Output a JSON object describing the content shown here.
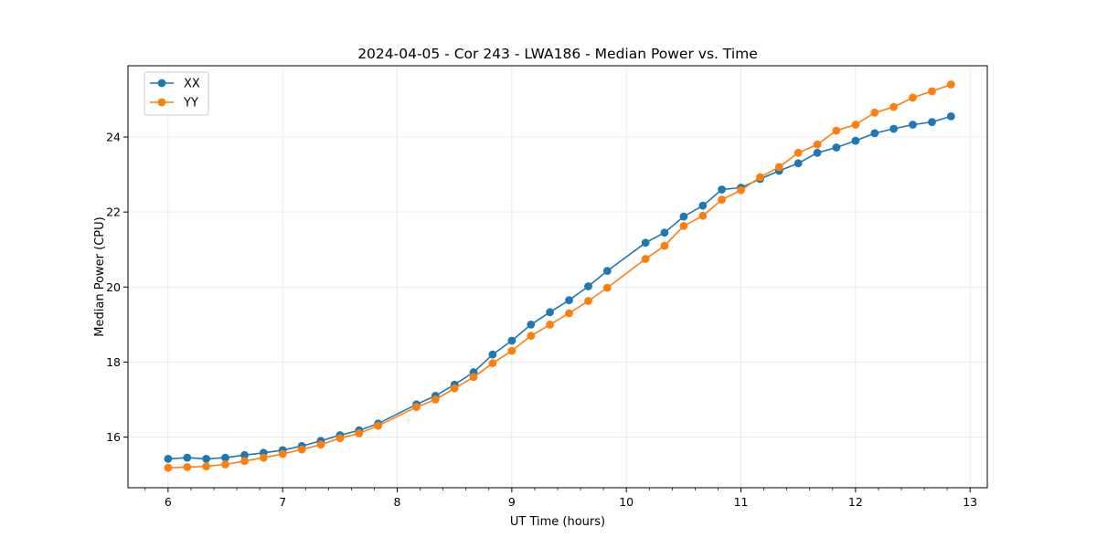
{
  "chart_data": {
    "type": "line",
    "title": "2024-04-05 - Cor 243 - LWA186 - Median Power vs. Time",
    "xlabel": "UT Time (hours)",
    "ylabel": "Median Power (CPU)",
    "xlim": [
      5.65,
      13.15
    ],
    "ylim": [
      14.65,
      25.9
    ],
    "xticks": [
      6,
      7,
      8,
      9,
      10,
      11,
      12,
      13
    ],
    "yticks": [
      16,
      18,
      20,
      22,
      24
    ],
    "grid": true,
    "legend_position": "top-left",
    "series": [
      {
        "name": "XX",
        "color": "#1f77b4",
        "x": [
          6.0,
          6.167,
          6.333,
          6.5,
          6.667,
          6.833,
          7.0,
          7.167,
          7.333,
          7.5,
          7.667,
          7.833,
          8.167,
          8.333,
          8.5,
          8.667,
          8.833,
          9.0,
          9.167,
          9.333,
          9.5,
          9.667,
          9.833,
          10.167,
          10.333,
          10.5,
          10.667,
          10.833,
          11.0,
          11.167,
          11.333,
          11.5,
          11.667,
          11.833,
          12.0,
          12.167,
          12.333,
          12.5,
          12.667,
          12.833
        ],
        "y": [
          15.42,
          15.45,
          15.42,
          15.45,
          15.52,
          15.58,
          15.65,
          15.76,
          15.9,
          16.05,
          16.18,
          16.36,
          16.87,
          17.1,
          17.4,
          17.73,
          18.2,
          18.57,
          19.0,
          19.33,
          19.65,
          20.02,
          20.43,
          21.18,
          21.45,
          21.88,
          22.17,
          22.6,
          22.65,
          22.88,
          23.1,
          23.3,
          23.58,
          23.72,
          23.9,
          24.1,
          24.22,
          24.33,
          24.4,
          24.55
        ]
      },
      {
        "name": "YY",
        "color": "#ff7f0e",
        "x": [
          6.0,
          6.167,
          6.333,
          6.5,
          6.667,
          6.833,
          7.0,
          7.167,
          7.333,
          7.5,
          7.667,
          7.833,
          8.167,
          8.333,
          8.5,
          8.667,
          8.833,
          9.0,
          9.167,
          9.333,
          9.5,
          9.667,
          9.833,
          10.167,
          10.333,
          10.5,
          10.667,
          10.833,
          11.0,
          11.167,
          11.333,
          11.5,
          11.667,
          11.833,
          12.0,
          12.167,
          12.333,
          12.5,
          12.667,
          12.833
        ],
        "y": [
          15.18,
          15.2,
          15.22,
          15.27,
          15.36,
          15.45,
          15.55,
          15.67,
          15.8,
          15.97,
          16.1,
          16.3,
          16.8,
          17.0,
          17.3,
          17.6,
          17.97,
          18.3,
          18.7,
          19.0,
          19.3,
          19.63,
          19.98,
          20.75,
          21.1,
          21.63,
          21.9,
          22.33,
          22.58,
          22.93,
          23.2,
          23.58,
          23.8,
          24.17,
          24.33,
          24.65,
          24.8,
          25.05,
          25.22,
          25.4
        ]
      }
    ]
  }
}
